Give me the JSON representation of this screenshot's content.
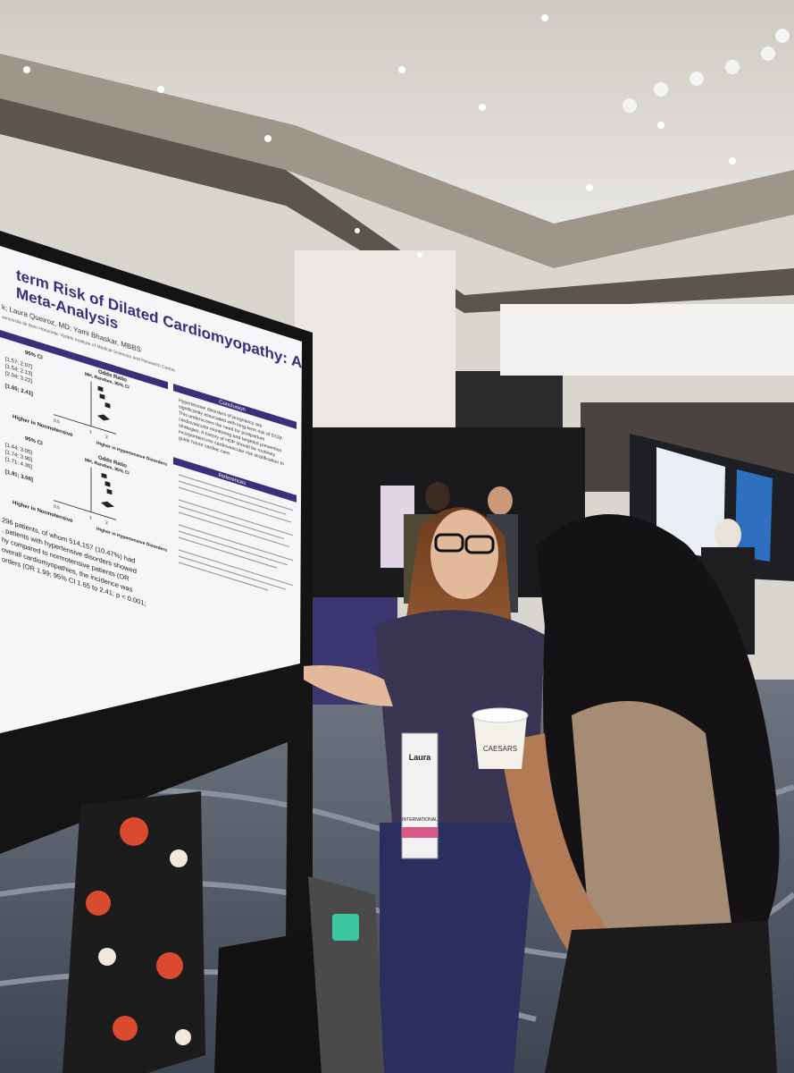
{
  "poster": {
    "title": [
      "term Risk of Dilated Cardiomyopathy: A",
      "Meta-Analysis"
    ],
    "authors": [
      "k; Laura Queiroz, MD; Yami Bhaskar, MBBS",
      "sericordia de Belo Horizonte; Vydehi Institute of Medical Sciences and Research Centre"
    ],
    "forest": {
      "ci_header": "95% CI",
      "or_header": "Odds Ratio",
      "method": "MH, Random, 95% CI",
      "top_ci": [
        "[1.57; 2.07]",
        "[1.54; 2.13]",
        "[2.04; 3.22]",
        "[1.65; 2.41]"
      ],
      "bottom_ci": [
        "[1.44; 3.05]",
        "[1.74; 3.90]",
        "[1.71; 4.35]",
        "[1.91; 3.06]"
      ],
      "axis": [
        "0.5",
        "1",
        "2"
      ],
      "left_label": "Higher in Normotensive",
      "right_label": "Higher in Hypertensive Disorders"
    },
    "conclusion": {
      "heading": "Conclusion",
      "text": [
        "Hypertensive disorders of pregnancy are",
        "significantly associated with long-term risk of DCM.",
        "This underscores the need for postpartum",
        "cardiovascular monitoring and targeted prevention",
        "strategies. A history of HDP should be routinely",
        "incorporated into cardiovascular risk stratification to",
        "guide future cardiac care."
      ]
    },
    "references": {
      "heading": "References"
    },
    "results": [
      "296 patients, of whom 514,157 (10.47%) had",
      ", patients with hypertensive disorders showed",
      "hy compared to normotensive patients (OR",
      "overall cardiomyopathies, the incidence was",
      "orders (OR 1.99; 95% CI 1.65 to 2.41; p < 0.001;"
    ]
  },
  "badge": {
    "name": "Laura",
    "ribbon": "INTERNATIONAL"
  },
  "cup": "CAESARS"
}
